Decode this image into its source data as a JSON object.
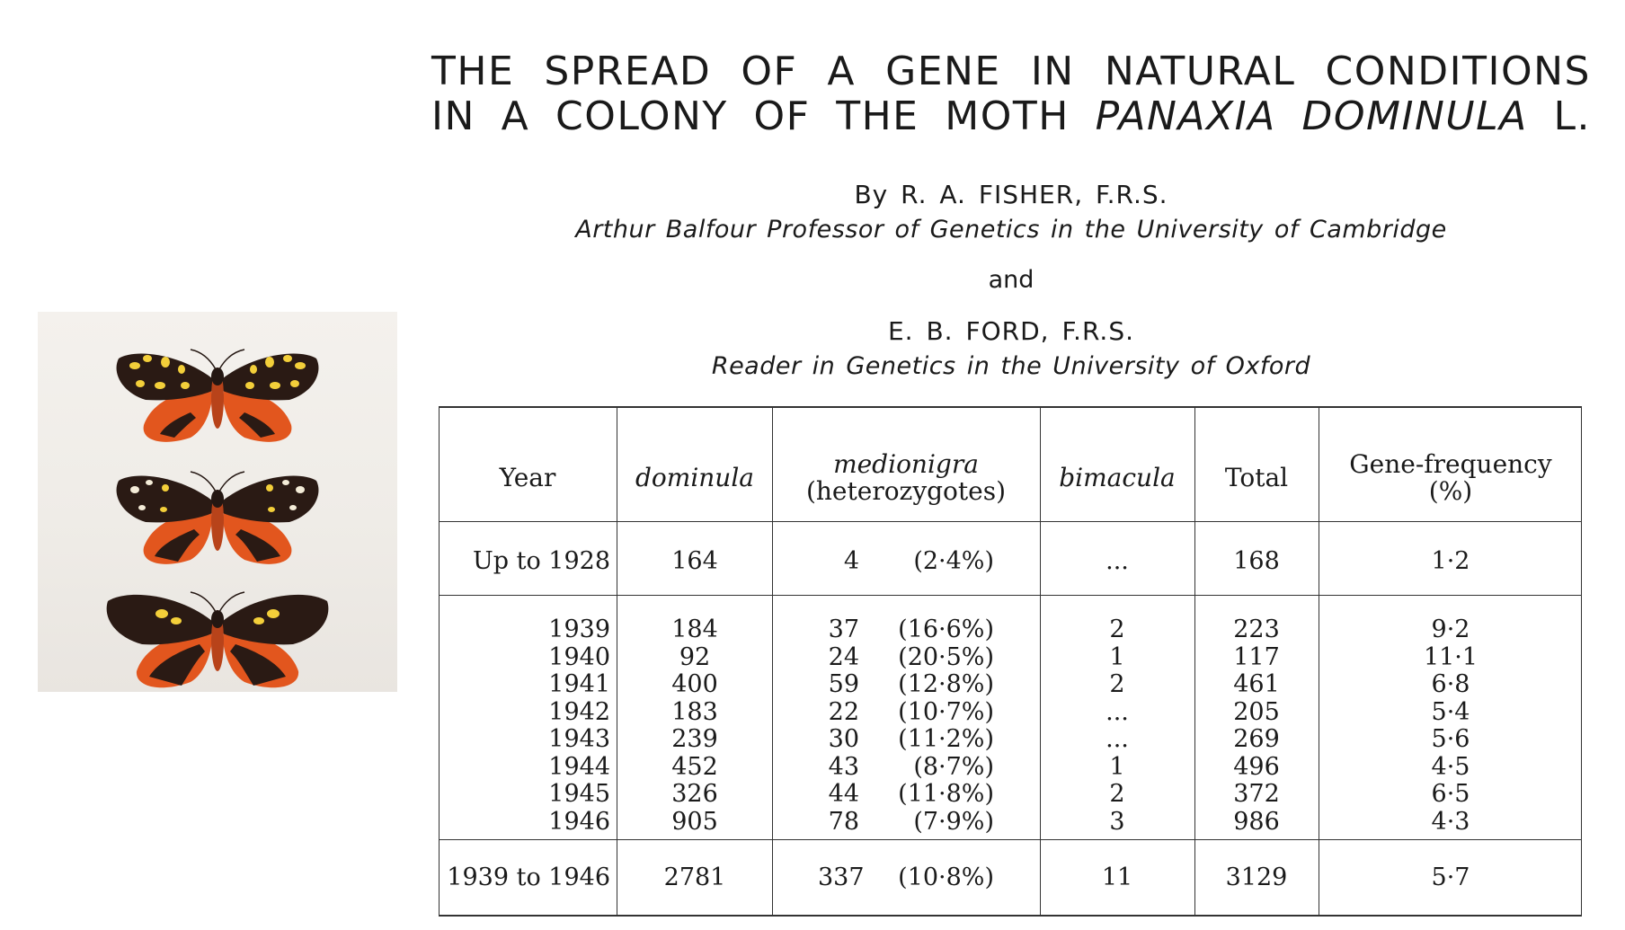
{
  "title": {
    "line1": "THE SPREAD OF A GENE IN NATURAL CONDITIONS",
    "line2_start": "IN A COLONY OF THE MOTH",
    "line2_italic": "PANAXIA DOMINULA",
    "line2_end": "L."
  },
  "authors": {
    "author1": "By R. A. FISHER, F.R.S.",
    "affiliation1": "Arthur Balfour Professor of Genetics in the University of Cambridge",
    "conjunction": "and",
    "author2": "E. B. FORD, F.R.S.",
    "affiliation2": "Reader in Genetics in the University of Oxford"
  },
  "table": {
    "headers": {
      "year": "Year",
      "dominula": "dominula",
      "medionigra_1": "medionigra",
      "medionigra_2": "(heterozygotes)",
      "bimacula": "bimacula",
      "total": "Total",
      "freq_1": "Gene-frequency",
      "freq_2": "(%)"
    },
    "first_row": {
      "year": "Up to 1928",
      "dominula": "164",
      "medionigra_count": "4",
      "medionigra_pct": "(2·4%)",
      "bimacula": "...",
      "total": "168",
      "frequency": "1·2"
    },
    "rows": [
      {
        "year": "1939",
        "dominula": "184",
        "medionigra_count": "37",
        "medionigra_pct": "(16·6%)",
        "bimacula": "2",
        "total": "223",
        "frequency": "9·2"
      },
      {
        "year": "1940",
        "dominula": "92",
        "medionigra_count": "24",
        "medionigra_pct": "(20·5%)",
        "bimacula": "1",
        "total": "117",
        "frequency": "11·1"
      },
      {
        "year": "1941",
        "dominula": "400",
        "medionigra_count": "59",
        "medionigra_pct": "(12·8%)",
        "bimacula": "2",
        "total": "461",
        "frequency": "6·8"
      },
      {
        "year": "1942",
        "dominula": "183",
        "medionigra_count": "22",
        "medionigra_pct": "(10·7%)",
        "bimacula": "...",
        "total": "205",
        "frequency": "5·4"
      },
      {
        "year": "1943",
        "dominula": "239",
        "medionigra_count": "30",
        "medionigra_pct": "(11·2%)",
        "bimacula": "...",
        "total": "269",
        "frequency": "5·6"
      },
      {
        "year": "1944",
        "dominula": "452",
        "medionigra_count": "43",
        "medionigra_pct": "(8·7%)",
        "bimacula": "1",
        "total": "496",
        "frequency": "4·5"
      },
      {
        "year": "1945",
        "dominula": "326",
        "medionigra_count": "44",
        "medionigra_pct": "(11·8%)",
        "bimacula": "2",
        "total": "372",
        "frequency": "6·5"
      },
      {
        "year": "1946",
        "dominula": "905",
        "medionigra_count": "78",
        "medionigra_pct": "(7·9%)",
        "bimacula": "3",
        "total": "986",
        "frequency": "4·3"
      }
    ],
    "summary_row": {
      "year": "1939 to 1946",
      "dominula": "2781",
      "medionigra_count": "337",
      "medionigra_pct": "(10·8%)",
      "bimacula": "11",
      "total": "3129",
      "frequency": "5·7"
    }
  },
  "photo": {
    "subject": "three-panaxia-dominula-moth-specimens",
    "colors": {
      "forewing": "#2a1a14",
      "hindwing": "#e2561e",
      "spot": "#f3cf3a",
      "white_spot": "#f4ecd8"
    }
  }
}
